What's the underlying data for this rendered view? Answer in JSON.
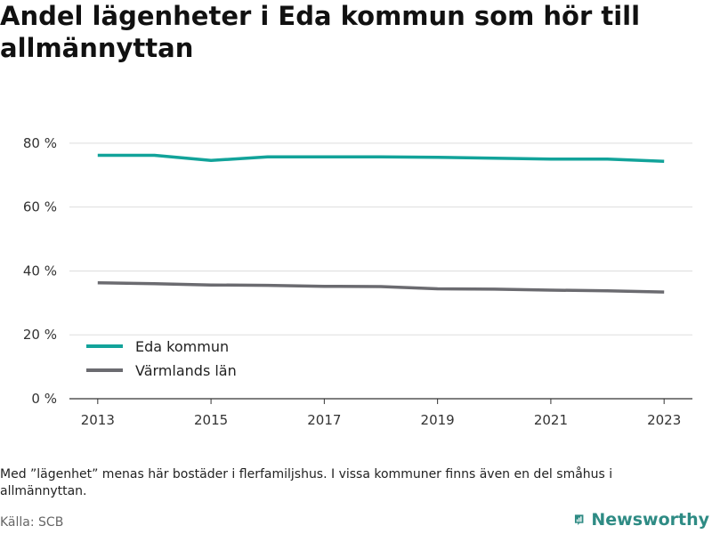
{
  "title": "Andel lägenheter i Eda kommun som hör till allmännyttan",
  "note": "Med ”lägenhet” menas här bostäder i flerfamiljshus. I vissa kommuner finns även en del småhus i allmännyttan.",
  "source": "Källa: SCB",
  "brand": {
    "name": "Newsworthy",
    "icon": "newsworthy-logo-icon"
  },
  "chart_data": {
    "type": "line",
    "title": "Andel lägenheter i Eda kommun som hör till allmännyttan",
    "xlabel": "",
    "ylabel": "",
    "x": [
      2013,
      2014,
      2015,
      2016,
      2017,
      2018,
      2019,
      2020,
      2021,
      2022,
      2023
    ],
    "xticks": [
      2013,
      2015,
      2017,
      2019,
      2021,
      2023
    ],
    "xlim": [
      2012.5,
      2023.5
    ],
    "ylim": [
      0,
      90
    ],
    "yticks": [
      0,
      20,
      40,
      60,
      80
    ],
    "ytick_labels": [
      "0 %",
      "20 %",
      "40 %",
      "60 %",
      "80 %"
    ],
    "grid": true,
    "legend_position": "bottom-left",
    "series": [
      {
        "name": "Eda kommun",
        "color": "#12a39a",
        "values": [
          76.2,
          76.2,
          74.6,
          75.7,
          75.7,
          75.7,
          75.6,
          75.3,
          75.0,
          75.0,
          74.3
        ]
      },
      {
        "name": "Värmlands län",
        "color": "#6b6b70",
        "values": [
          36.3,
          36.0,
          35.6,
          35.5,
          35.2,
          35.1,
          34.4,
          34.3,
          34.0,
          33.8,
          33.4
        ]
      }
    ]
  }
}
